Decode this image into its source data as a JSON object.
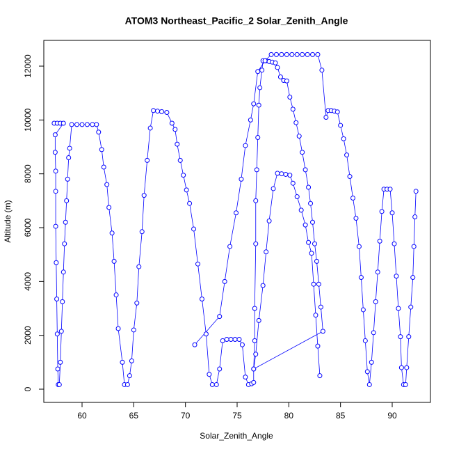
{
  "chart_data": {
    "type": "line_points",
    "title": "ATOM3 Northeast_Pacific_2 Solar_Zenith_Angle",
    "x_label": "Solar_Zenith_Angle",
    "y_label": "Altitude (m)",
    "color": "#0000ff",
    "xlim": [
      56.3,
      93.7
    ],
    "ylim": [
      -491,
      12957
    ],
    "xticks": [
      60,
      65,
      70,
      75,
      80,
      85,
      90
    ],
    "yticks": [
      0,
      2000,
      4000,
      6000,
      8000,
      10000,
      12000
    ],
    "x": [
      57.3,
      57.6,
      57.9,
      58.2,
      57.4,
      57.4,
      57.45,
      57.45,
      57.45,
      57.5,
      57.55,
      57.6,
      57.65,
      57.7,
      57.8,
      57.9,
      58.0,
      58.1,
      58.2,
      58.3,
      58.4,
      58.5,
      58.6,
      58.7,
      58.8,
      59.0,
      59.5,
      60.0,
      60.5,
      61.0,
      61.4,
      61.6,
      61.9,
      62.1,
      62.4,
      62.6,
      62.9,
      63.1,
      63.3,
      63.5,
      63.9,
      64.1,
      64.4,
      64.6,
      64.8,
      65.0,
      65.3,
      65.5,
      65.8,
      66.0,
      66.3,
      66.6,
      66.9,
      67.3,
      67.7,
      68.2,
      68.7,
      69.0,
      69.2,
      69.5,
      69.8,
      70.1,
      70.4,
      70.8,
      71.2,
      71.6,
      72.0,
      72.3,
      72.6,
      73.0,
      73.3,
      73.6,
      74.0,
      74.4,
      74.8,
      75.2,
      75.5,
      75.8,
      76.1,
      76.4,
      76.6,
      76.6,
      76.7,
      76.7,
      76.8,
      76.8,
      76.9,
      77.0,
      77.1,
      77.2,
      77.4,
      77.5,
      77.8,
      78.1,
      78.4,
      78.7,
      78.9,
      79.2,
      79.5,
      79.8,
      80.1,
      80.4,
      80.7,
      81.0,
      81.3,
      81.6,
      81.9,
      82.1,
      82.3,
      82.5,
      82.7,
      82.9,
      83.1,
      83.3,
      76.6,
      76.8,
      77.1,
      77.5,
      77.8,
      78.1,
      78.5,
      78.9,
      79.3,
      79.7,
      80.1,
      80.4,
      80.8,
      81.2,
      81.6,
      81.9,
      82.2,
      82.4,
      82.6,
      82.8,
      83.0,
      null,
      70.9,
      73.3,
      73.8,
      74.3,
      74.9,
      75.4,
      75.8,
      76.3,
      76.6,
      77.0,
      77.7,
      78.3,
      78.8,
      79.3,
      79.8,
      80.3,
      80.8,
      81.3,
      81.8,
      82.3,
      82.8,
      83.2,
      83.6,
      83.8,
      84.1,
      84.4,
      84.7,
      85.0,
      85.3,
      85.6,
      85.9,
      86.2,
      86.5,
      86.8,
      87.0,
      87.2,
      87.4,
      87.6,
      87.8,
      88.0,
      88.2,
      88.4,
      88.6,
      88.8,
      89.0,
      89.2,
      89.5,
      89.8,
      90.0,
      90.2,
      90.4,
      90.6,
      90.8,
      90.9,
      91.1,
      91.3,
      91.4,
      91.6,
      91.8,
      92.0,
      92.1,
      92.2,
      92.3
    ],
    "values": [
      9880,
      9880,
      9880,
      9880,
      9450,
      8800,
      8100,
      7350,
      6050,
      4700,
      3350,
      2050,
      750,
      170,
      170,
      1000,
      2150,
      3250,
      4350,
      5400,
      6200,
      7000,
      7800,
      8600,
      8950,
      9830,
      9830,
      9830,
      9830,
      9830,
      9830,
      9550,
      8900,
      8250,
      7600,
      6750,
      5800,
      4750,
      3500,
      2250,
      1000,
      170,
      170,
      500,
      1050,
      2200,
      3200,
      4550,
      5850,
      7200,
      8500,
      9700,
      10350,
      10330,
      10310,
      10280,
      9880,
      9650,
      9100,
      8500,
      7950,
      7400,
      6900,
      5950,
      4650,
      3350,
      2050,
      550,
      170,
      170,
      750,
      1800,
      1850,
      1850,
      1850,
      1850,
      1650,
      450,
      170,
      200,
      250,
      750,
      1800,
      3000,
      5400,
      7000,
      8150,
      9350,
      10550,
      11200,
      11850,
      12200,
      12200,
      12170,
      12150,
      12120,
      11950,
      11600,
      11470,
      11450,
      10850,
      10400,
      9900,
      9400,
      8800,
      8150,
      7500,
      6900,
      6200,
      5400,
      4750,
      3900,
      3050,
      2150,
      750,
      1300,
      2550,
      3850,
      5100,
      6250,
      7450,
      8020,
      8000,
      7980,
      7950,
      7650,
      7150,
      6650,
      6100,
      5450,
      5050,
      3900,
      2750,
      1600,
      500,
      null,
      1650,
      2700,
      4000,
      5300,
      6550,
      7800,
      9050,
      10000,
      10600,
      11800,
      12200,
      12430,
      12430,
      12430,
      12430,
      12430,
      12430,
      12430,
      12430,
      12430,
      12430,
      11850,
      10100,
      10350,
      10350,
      10330,
      10300,
      9800,
      9300,
      8700,
      7900,
      7100,
      6350,
      5300,
      4150,
      2950,
      1800,
      650,
      170,
      1000,
      2100,
      3250,
      4350,
      5500,
      6600,
      7430,
      7430,
      7430,
      6550,
      5400,
      4200,
      3000,
      1950,
      800,
      170,
      170,
      800,
      1950,
      3050,
      4150,
      5300,
      6400,
      7350
    ]
  }
}
